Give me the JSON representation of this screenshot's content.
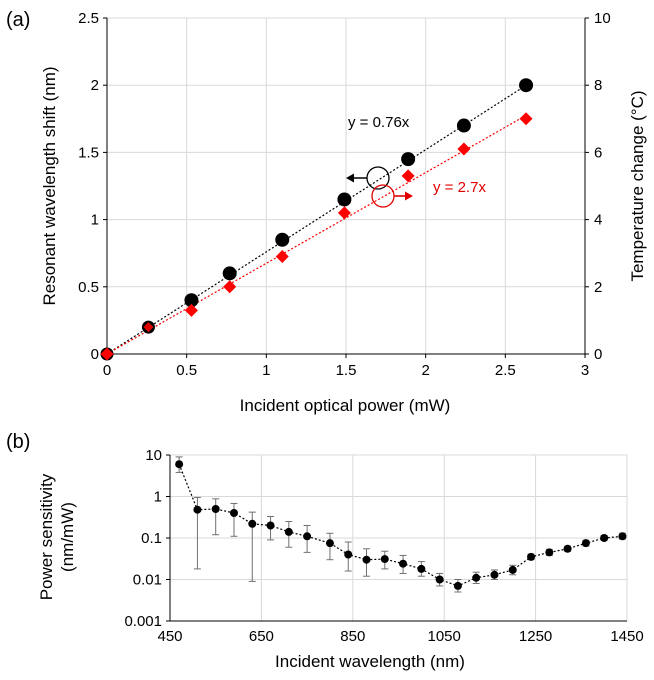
{
  "chart_data": [
    {
      "panel_label": "(a)",
      "type": "scatter",
      "xlabel": "Incident optical power (mW)",
      "ylabel": "Resonant wavelength shift (nm)",
      "y2label": "Temperature change (°C)",
      "xlim": [
        0,
        3
      ],
      "ylim": [
        0,
        2.5
      ],
      "y2lim": [
        0,
        10
      ],
      "xticks": [
        "0",
        "0.5",
        "1",
        "1.5",
        "2",
        "2.5",
        "3"
      ],
      "yticks": [
        "0",
        "0.5",
        "1",
        "1.5",
        "2",
        "2.5"
      ],
      "y2ticks": [
        "0",
        "2",
        "4",
        "6",
        "8",
        "10"
      ],
      "grid": true,
      "series": [
        {
          "axis": "left",
          "marker": "circle",
          "color": "#000000",
          "x": [
            0,
            0.26,
            0.53,
            0.77,
            1.1,
            1.49,
            1.89,
            2.24,
            2.63
          ],
          "y": [
            0,
            0.2,
            0.4,
            0.6,
            0.85,
            1.15,
            1.45,
            1.7,
            2.0
          ],
          "fit_label": "y = 0.76x",
          "fit_slope": 0.76
        },
        {
          "axis": "right",
          "marker": "diamond",
          "color": "#ff0000",
          "x": [
            0,
            0.26,
            0.53,
            0.77,
            1.1,
            1.49,
            1.89,
            2.24,
            2.63
          ],
          "y": [
            0,
            0.8,
            1.3,
            2.0,
            2.9,
            4.2,
            5.3,
            6.1,
            7.0
          ],
          "fit_label": "y = 2.7x",
          "fit_slope": 2.7
        }
      ]
    },
    {
      "panel_label": "(b)",
      "type": "scatter",
      "xlabel": "Incident wavelength (nm)",
      "ylabel": "Power sensitivity (nm/mW)",
      "ylabel_lines": [
        "Power sensitivity",
        "(nm/mW)"
      ],
      "xlim": [
        450,
        1450
      ],
      "ylim": [
        0.001,
        10
      ],
      "yscale": "log",
      "xticks": [
        "450",
        "650",
        "850",
        "1050",
        "1250",
        "1450"
      ],
      "yticks": [
        "0.001",
        "0.01",
        "0.1",
        "1",
        "10"
      ],
      "grid": true,
      "series": [
        {
          "marker": "circle",
          "color": "#000000",
          "x": [
            470,
            510,
            550,
            590,
            630,
            670,
            710,
            750,
            800,
            840,
            880,
            920,
            960,
            1000,
            1040,
            1080,
            1120,
            1160,
            1200,
            1240,
            1280,
            1320,
            1360,
            1400,
            1440
          ],
          "y": [
            6.0,
            0.48,
            0.5,
            0.4,
            0.22,
            0.2,
            0.14,
            0.11,
            0.075,
            0.04,
            0.03,
            0.031,
            0.024,
            0.018,
            0.01,
            0.007,
            0.011,
            0.013,
            0.017,
            0.035,
            0.045,
            0.055,
            0.075,
            0.1,
            0.11
          ],
          "err_low": [
            3.8,
            0.018,
            0.12,
            0.11,
            0.009,
            0.09,
            0.06,
            0.045,
            0.03,
            0.016,
            0.012,
            0.018,
            0.014,
            0.012,
            0.007,
            0.005,
            0.008,
            0.01,
            0.013,
            0.03,
            0.038,
            0.048,
            0.064,
            0.088,
            0.094
          ],
          "err_high": [
            9.0,
            0.95,
            0.88,
            0.68,
            0.42,
            0.33,
            0.25,
            0.2,
            0.13,
            0.08,
            0.055,
            0.048,
            0.038,
            0.027,
            0.014,
            0.01,
            0.015,
            0.017,
            0.022,
            0.041,
            0.053,
            0.064,
            0.088,
            0.115,
            0.13
          ]
        }
      ]
    }
  ]
}
